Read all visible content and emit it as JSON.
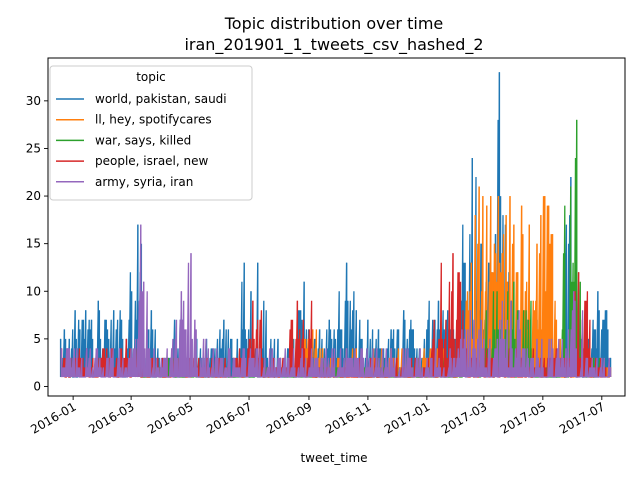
{
  "chart_data": {
    "type": "line",
    "title": "Topic distribution over time",
    "subtitle": "iran_201901_1_tweets_csv_hashed_2",
    "xlabel": "tweet_time",
    "ylabel": "",
    "x_tick_labels": [
      "2016-01",
      "2016-03",
      "2016-05",
      "2016-07",
      "2016-09",
      "2016-11",
      "2017-01",
      "2017-03",
      "2017-05",
      "2017-07"
    ],
    "y_ticks": [
      0,
      5,
      10,
      15,
      20,
      25,
      30
    ],
    "ylim": [
      -1,
      34.5
    ],
    "xlim": [
      "2015-12-06",
      "2017-07-25"
    ],
    "grid": false,
    "legend": {
      "title": "topic",
      "placement": "top-left"
    },
    "series": [
      {
        "name": "world, pakistan, saudi",
        "color": "#1f77b4",
        "points": [
          [
            "2015-12-19",
            5
          ],
          [
            "2015-12-23",
            6
          ],
          [
            "2015-12-28",
            5
          ],
          [
            "2016-01-03",
            8
          ],
          [
            "2016-01-08",
            6
          ],
          [
            "2016-01-14",
            8
          ],
          [
            "2016-01-20",
            7
          ],
          [
            "2016-01-27",
            9
          ],
          [
            "2016-02-03",
            7
          ],
          [
            "2016-02-12",
            8
          ],
          [
            "2016-02-20",
            7
          ],
          [
            "2016-02-28",
            7
          ],
          [
            "2016-03-08",
            17
          ],
          [
            "2016-03-14",
            6
          ],
          [
            "2016-03-22",
            8
          ],
          [
            "2016-03-30",
            3
          ],
          [
            "2016-04-07",
            2
          ],
          [
            "2016-04-15",
            7
          ],
          [
            "2016-04-22",
            9
          ],
          [
            "2016-04-29",
            5
          ],
          [
            "2016-05-08",
            5
          ],
          [
            "2016-05-18",
            5
          ],
          [
            "2016-05-28",
            3
          ],
          [
            "2016-06-05",
            7
          ],
          [
            "2016-06-12",
            5
          ],
          [
            "2016-06-19",
            5
          ],
          [
            "2016-06-26",
            13
          ],
          [
            "2016-07-03",
            10
          ],
          [
            "2016-07-10",
            13
          ],
          [
            "2016-07-20",
            3
          ],
          [
            "2016-07-31",
            5
          ],
          [
            "2016-08-10",
            4
          ],
          [
            "2016-08-20",
            5
          ],
          [
            "2016-08-27",
            11
          ],
          [
            "2016-09-03",
            5
          ],
          [
            "2016-09-12",
            6
          ],
          [
            "2016-09-22",
            7
          ],
          [
            "2016-10-01",
            6
          ],
          [
            "2016-10-10",
            13
          ],
          [
            "2016-10-20",
            8
          ],
          [
            "2016-11-01",
            7
          ],
          [
            "2016-11-12",
            6
          ],
          [
            "2016-11-25",
            6
          ],
          [
            "2016-12-08",
            8
          ],
          [
            "2016-12-18",
            6
          ],
          [
            "2017-01-01",
            6
          ],
          [
            "2017-01-13",
            9
          ],
          [
            "2017-01-25",
            6
          ],
          [
            "2017-02-06",
            9
          ],
          [
            "2017-02-17",
            24
          ],
          [
            "2017-02-26",
            15
          ],
          [
            "2017-03-06",
            13
          ],
          [
            "2017-03-13",
            16
          ],
          [
            "2017-03-17",
            33
          ],
          [
            "2017-03-27",
            12
          ],
          [
            "2017-04-05",
            5
          ],
          [
            "2017-04-15",
            7
          ],
          [
            "2017-04-25",
            7
          ],
          [
            "2017-05-05",
            5
          ],
          [
            "2017-05-14",
            5
          ],
          [
            "2017-05-23",
            5
          ],
          [
            "2017-05-30",
            22
          ],
          [
            "2017-06-07",
            4
          ],
          [
            "2017-06-17",
            5
          ],
          [
            "2017-06-27",
            10
          ],
          [
            "2017-07-06",
            8
          ],
          [
            "2017-07-10",
            3
          ]
        ]
      },
      {
        "name": "ll, hey, spotifycares",
        "color": "#ff7f0e",
        "points": [
          [
            "2016-08-15",
            5
          ],
          [
            "2016-08-25",
            4
          ],
          [
            "2016-09-05",
            6
          ],
          [
            "2016-09-15",
            4
          ],
          [
            "2016-10-01",
            3
          ],
          [
            "2016-10-20",
            4
          ],
          [
            "2016-11-08",
            3
          ],
          [
            "2016-11-25",
            4
          ],
          [
            "2016-12-10",
            3
          ],
          [
            "2016-12-28",
            3
          ],
          [
            "2017-01-12",
            4
          ],
          [
            "2017-01-25",
            3
          ],
          [
            "2017-02-08",
            5
          ],
          [
            "2017-02-16",
            13
          ],
          [
            "2017-02-20",
            18
          ],
          [
            "2017-02-24",
            21
          ],
          [
            "2017-02-28",
            20
          ],
          [
            "2017-03-04",
            19
          ],
          [
            "2017-03-08",
            20
          ],
          [
            "2017-03-12",
            15
          ],
          [
            "2017-03-16",
            20
          ],
          [
            "2017-03-20",
            14
          ],
          [
            "2017-03-24",
            18
          ],
          [
            "2017-03-28",
            20
          ],
          [
            "2017-04-01",
            17
          ],
          [
            "2017-04-05",
            12
          ],
          [
            "2017-04-09",
            19
          ],
          [
            "2017-04-13",
            10
          ],
          [
            "2017-04-17",
            17
          ],
          [
            "2017-04-21",
            9
          ],
          [
            "2017-04-25",
            15
          ],
          [
            "2017-04-29",
            18
          ],
          [
            "2017-05-03",
            20
          ],
          [
            "2017-05-07",
            19
          ],
          [
            "2017-05-11",
            16
          ],
          [
            "2017-05-15",
            7
          ],
          [
            "2017-05-19",
            5
          ],
          [
            "2017-05-23",
            4
          ],
          [
            "2017-06-01",
            3
          ],
          [
            "2017-06-10",
            4
          ],
          [
            "2017-06-20",
            3
          ],
          [
            "2017-07-01",
            2
          ],
          [
            "2017-07-10",
            2
          ]
        ]
      },
      {
        "name": "war, says, killed",
        "color": "#2ca02c",
        "points": [
          [
            "2016-03-10",
            3
          ],
          [
            "2016-05-01",
            2
          ],
          [
            "2016-07-25",
            2
          ],
          [
            "2016-09-10",
            2
          ],
          [
            "2016-11-10",
            2
          ],
          [
            "2017-01-15",
            2
          ],
          [
            "2017-03-01",
            3
          ],
          [
            "2017-04-01",
            11
          ],
          [
            "2017-04-20",
            2
          ],
          [
            "2017-05-20",
            2
          ],
          [
            "2017-06-05",
            28
          ],
          [
            "2017-06-10",
            3
          ],
          [
            "2017-07-05",
            2
          ]
        ]
      },
      {
        "name": "people, israel, new",
        "color": "#d62728",
        "points": [
          [
            "2015-12-20",
            4
          ],
          [
            "2016-01-05",
            3
          ],
          [
            "2016-01-15",
            4
          ],
          [
            "2016-01-28",
            3
          ],
          [
            "2016-02-10",
            4
          ],
          [
            "2016-02-25",
            5
          ],
          [
            "2016-03-10",
            4
          ],
          [
            "2016-03-25",
            3
          ],
          [
            "2016-04-15",
            3
          ],
          [
            "2016-05-05",
            3
          ],
          [
            "2016-05-25",
            3
          ],
          [
            "2016-06-15",
            3
          ],
          [
            "2016-06-30",
            4
          ],
          [
            "2016-07-05",
            9
          ],
          [
            "2016-07-15",
            3
          ],
          [
            "2016-08-10",
            2
          ],
          [
            "2016-08-20",
            9
          ],
          [
            "2016-09-05",
            3
          ],
          [
            "2016-09-25",
            2
          ],
          [
            "2016-10-15",
            3
          ],
          [
            "2016-11-10",
            3
          ],
          [
            "2016-12-01",
            3
          ],
          [
            "2016-12-20",
            3
          ],
          [
            "2017-01-05",
            3
          ],
          [
            "2017-01-28",
            14
          ],
          [
            "2017-02-10",
            4
          ],
          [
            "2017-03-05",
            3
          ],
          [
            "2017-03-25",
            4
          ],
          [
            "2017-04-15",
            3
          ],
          [
            "2017-05-10",
            4
          ],
          [
            "2017-06-01",
            3
          ],
          [
            "2017-06-07",
            12
          ],
          [
            "2017-06-20",
            3
          ],
          [
            "2017-07-05",
            2
          ]
        ]
      },
      {
        "name": "army, syria, iran",
        "color": "#9467bd",
        "points": [
          [
            "2015-12-20",
            4
          ],
          [
            "2015-12-28",
            4
          ],
          [
            "2016-01-05",
            4
          ],
          [
            "2016-01-15",
            4
          ],
          [
            "2016-01-25",
            4
          ],
          [
            "2016-02-05",
            3
          ],
          [
            "2016-02-18",
            4
          ],
          [
            "2016-03-01",
            4
          ],
          [
            "2016-03-08",
            5
          ],
          [
            "2016-03-11",
            17
          ],
          [
            "2016-03-14",
            11
          ],
          [
            "2016-03-20",
            4
          ],
          [
            "2016-04-05",
            3
          ],
          [
            "2016-04-12",
            4
          ],
          [
            "2016-04-22",
            10
          ],
          [
            "2016-04-28",
            3
          ],
          [
            "2016-05-02",
            14
          ],
          [
            "2016-05-06",
            7
          ],
          [
            "2016-05-15",
            5
          ],
          [
            "2016-05-25",
            4
          ],
          [
            "2016-06-10",
            4
          ],
          [
            "2016-06-25",
            4
          ],
          [
            "2016-07-10",
            4
          ],
          [
            "2016-07-25",
            4
          ],
          [
            "2016-08-10",
            3
          ],
          [
            "2016-08-25",
            4
          ],
          [
            "2016-09-10",
            3
          ],
          [
            "2016-09-25",
            4
          ],
          [
            "2016-10-10",
            4
          ],
          [
            "2016-10-25",
            4
          ],
          [
            "2016-11-10",
            4
          ],
          [
            "2016-11-25",
            4
          ],
          [
            "2016-12-10",
            4
          ],
          [
            "2016-12-25",
            4
          ],
          [
            "2017-01-10",
            4
          ],
          [
            "2017-01-25",
            4
          ],
          [
            "2017-02-05",
            5
          ],
          [
            "2017-02-15",
            8
          ],
          [
            "2017-03-01",
            5
          ],
          [
            "2017-03-15",
            5
          ],
          [
            "2017-03-29",
            9
          ],
          [
            "2017-04-10",
            4
          ],
          [
            "2017-04-25",
            5
          ],
          [
            "2017-05-10",
            5
          ],
          [
            "2017-05-25",
            4
          ],
          [
            "2017-06-02",
            10
          ],
          [
            "2017-06-15",
            3
          ],
          [
            "2017-07-01",
            3
          ],
          [
            "2017-07-10",
            2
          ]
        ]
      }
    ]
  }
}
